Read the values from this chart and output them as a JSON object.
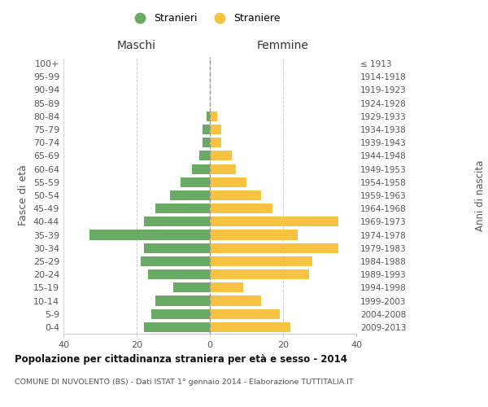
{
  "age_groups": [
    "0-4",
    "5-9",
    "10-14",
    "15-19",
    "20-24",
    "25-29",
    "30-34",
    "35-39",
    "40-44",
    "45-49",
    "50-54",
    "55-59",
    "60-64",
    "65-69",
    "70-74",
    "75-79",
    "80-84",
    "85-89",
    "90-94",
    "95-99",
    "100+"
  ],
  "birth_years": [
    "2009-2013",
    "2004-2008",
    "1999-2003",
    "1994-1998",
    "1989-1993",
    "1984-1988",
    "1979-1983",
    "1974-1978",
    "1969-1973",
    "1964-1968",
    "1959-1963",
    "1954-1958",
    "1949-1953",
    "1944-1948",
    "1939-1943",
    "1934-1938",
    "1929-1933",
    "1924-1928",
    "1919-1923",
    "1914-1918",
    "≤ 1913"
  ],
  "males": [
    18,
    16,
    15,
    10,
    17,
    19,
    18,
    33,
    18,
    15,
    11,
    8,
    5,
    3,
    2,
    2,
    1,
    0,
    0,
    0,
    0
  ],
  "females": [
    22,
    19,
    14,
    9,
    27,
    28,
    35,
    24,
    35,
    17,
    14,
    10,
    7,
    6,
    3,
    3,
    2,
    0,
    0,
    0,
    0
  ],
  "male_color": "#6aaa64",
  "female_color": "#f5c242",
  "title": "Popolazione per cittadinanza straniera per età e sesso - 2014",
  "subtitle": "COMUNE DI NUVOLENTO (BS) - Dati ISTAT 1° gennaio 2014 - Elaborazione TUTTITALIA.IT",
  "xlabel_left": "Maschi",
  "xlabel_right": "Femmine",
  "ylabel_left": "Fasce di età",
  "ylabel_right": "Anni di nascita",
  "legend_male": "Stranieri",
  "legend_female": "Straniere",
  "xlim": [
    -40,
    40
  ],
  "xticks": [
    -40,
    -20,
    0,
    20,
    40
  ],
  "xticklabels": [
    "40",
    "20",
    "0",
    "20",
    "40"
  ],
  "bg_color": "#ffffff",
  "grid_color": "#cccccc"
}
